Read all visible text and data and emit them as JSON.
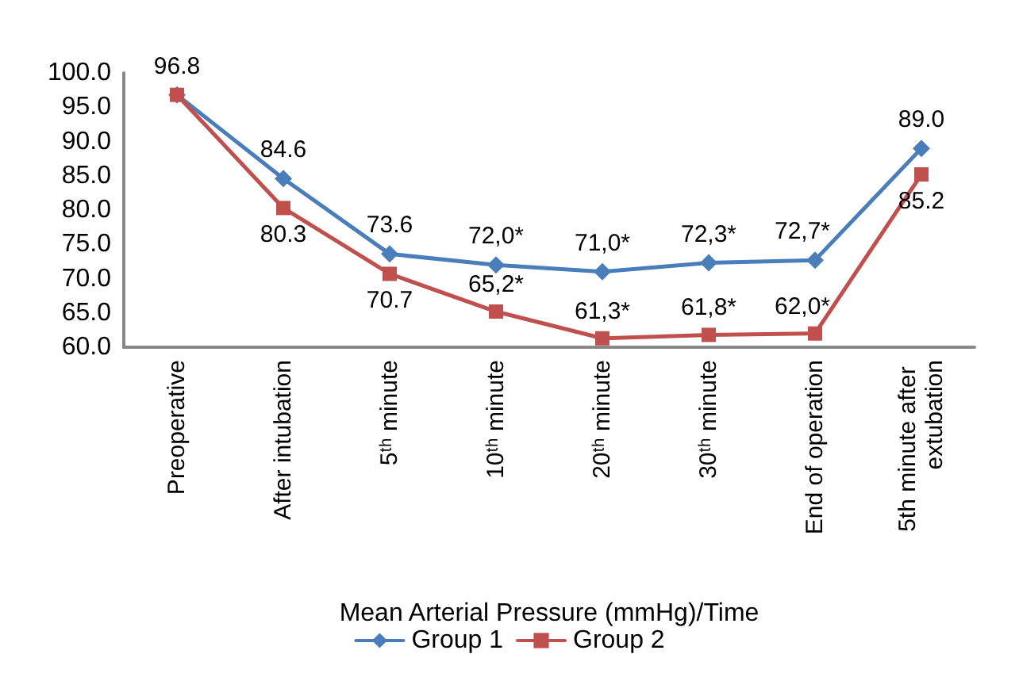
{
  "chart_data": {
    "type": "line",
    "xlabel": "Mean Arterial Pressure (mmHg)/Time",
    "categories": [
      "Preoperative",
      "After intubation",
      "5ᵗʰ minute",
      "10ᵗʰ minute",
      "20ᵗʰ minute",
      "30ᵗʰ minute",
      "End of operation",
      "5th minute after extubation"
    ],
    "series": [
      {
        "name": "Group 1",
        "color": "#4a7ebb",
        "marker": "diamond",
        "values": [
          96.8,
          84.6,
          73.6,
          72.0,
          71.0,
          72.3,
          72.7,
          89.0
        ],
        "value_labels": [
          "96.8",
          "84.6",
          "73.6",
          "72,0*",
          "71,0*",
          "72,3*",
          "72,7*",
          "89.0"
        ]
      },
      {
        "name": "Group 2",
        "color": "#c0504d",
        "marker": "square",
        "values": [
          96.8,
          80.3,
          70.7,
          65.2,
          61.3,
          61.8,
          62.0,
          85.2
        ],
        "value_labels": [
          null,
          "80.3",
          "70.7",
          "65,2*",
          "61,3*",
          "61,8*",
          "62,0*",
          "85.2"
        ]
      }
    ],
    "ylim": [
      60,
      100
    ],
    "yticks": [
      {
        "value": 60,
        "label": "60.0"
      },
      {
        "value": 65,
        "label": "65.0"
      },
      {
        "value": 70,
        "label": "70.0"
      },
      {
        "value": 75,
        "label": "75.0"
      },
      {
        "value": 80,
        "label": "80.0"
      },
      {
        "value": 85,
        "label": "85.0"
      },
      {
        "value": 90,
        "label": "90.0"
      },
      {
        "value": 95,
        "label": "95.0"
      },
      {
        "value": 100,
        "label": "100.0"
      }
    ],
    "grid": false,
    "legend": "bottom"
  }
}
